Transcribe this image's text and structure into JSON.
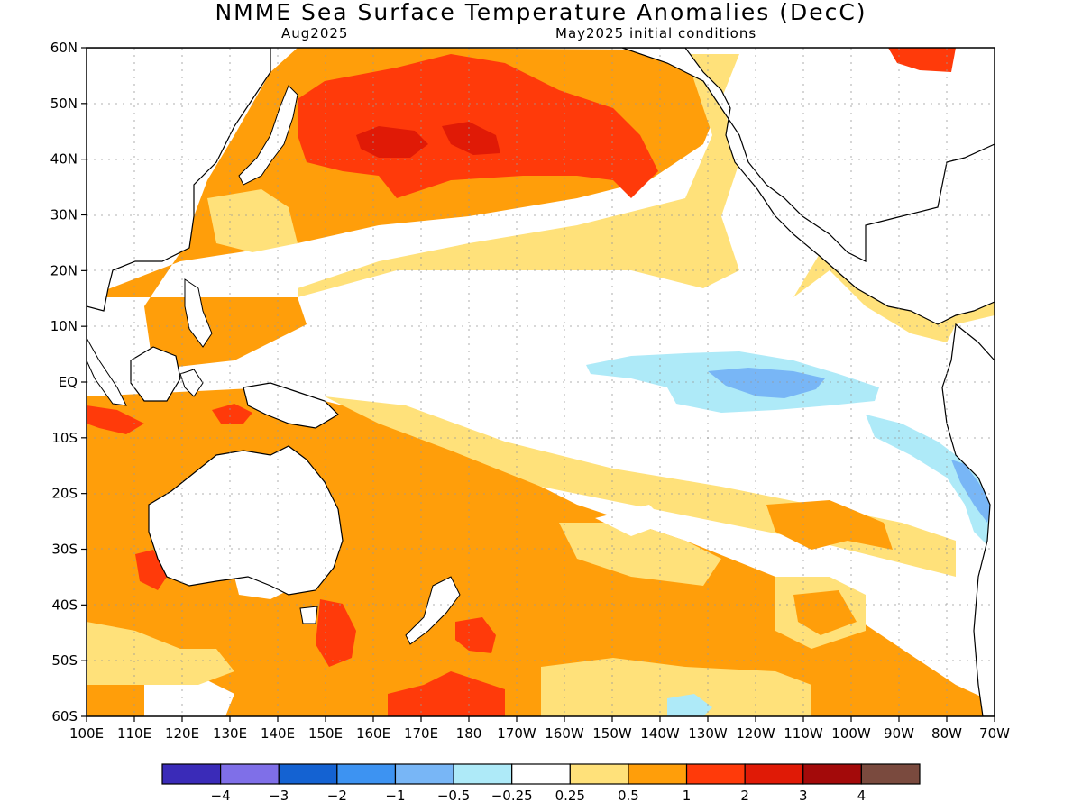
{
  "header": {
    "title": "NMME Sea Surface Temperature Anomalies (DecC)",
    "target_month": "Aug2025",
    "initial_conditions": "May2025 initial conditions"
  },
  "axes": {
    "lat_labels": [
      "60N",
      "50N",
      "40N",
      "30N",
      "20N",
      "10N",
      "EQ",
      "10S",
      "20S",
      "30S",
      "40S",
      "50S",
      "60S"
    ],
    "lon_labels": [
      "100E",
      "110E",
      "120E",
      "130E",
      "140E",
      "150E",
      "160E",
      "170E",
      "180",
      "170W",
      "160W",
      "150W",
      "140W",
      "130W",
      "120W",
      "110W",
      "100W",
      "90W",
      "80W",
      "70W"
    ]
  },
  "colorbar": {
    "colors": [
      "#3a2bb8",
      "#7f6fe8",
      "#1462d2",
      "#3d93f2",
      "#78b6f6",
      "#aeeaf8",
      "#ffffff",
      "#ffe17a",
      "#ff9e0a",
      "#ff3a0a",
      "#e01a06",
      "#a30a0a",
      "#7a4a3e"
    ],
    "labels": [
      "−4",
      "−3",
      "−2",
      "−1",
      "−0.5",
      "−0.25",
      "0.25",
      "0.5",
      "1",
      "2",
      "3",
      "4"
    ]
  },
  "palette": {
    "light_orange": "#ffe17a",
    "orange": "#ff9e0a",
    "red_orange": "#ff3a0a",
    "dark_red": "#e01a06",
    "light_blue": "#aeeaf8",
    "mid_blue": "#78b6f6"
  }
}
